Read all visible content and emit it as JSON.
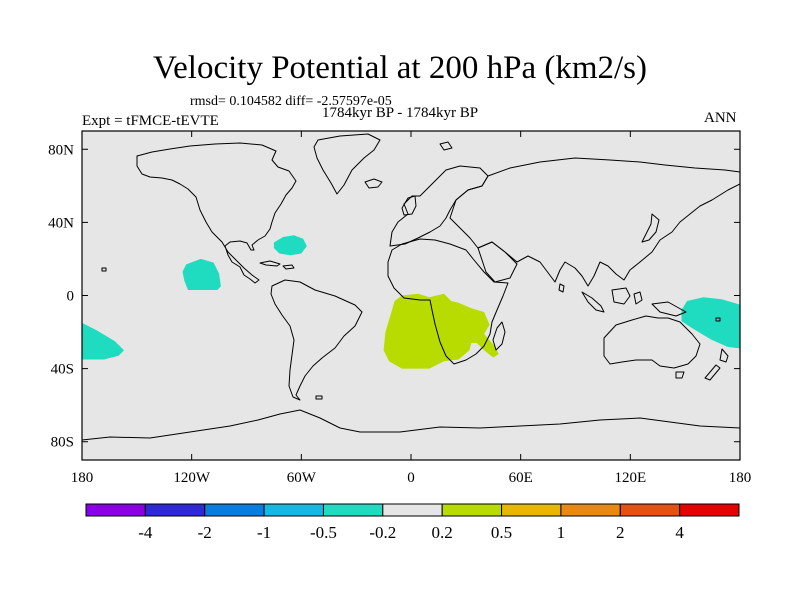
{
  "title": "Velocity Potential at 200 hPa (km2/s)",
  "stats": "rmsd= 0.104582 diff= -2.57597e-05",
  "period": "1784kyr BP - 1784kyr BP",
  "experiment": "Expt = tFMCE-tEVTE",
  "season": "ANN",
  "map": {
    "projection": "cylindrical-equidistant",
    "lon_range": [
      -180,
      180
    ],
    "lat_range": [
      -90,
      90
    ],
    "lon_ticks": [
      {
        "value": -180,
        "label": "180"
      },
      {
        "value": -120,
        "label": "120W"
      },
      {
        "value": -60,
        "label": "60W"
      },
      {
        "value": 0,
        "label": "0"
      },
      {
        "value": 60,
        "label": "60E"
      },
      {
        "value": 120,
        "label": "120E"
      },
      {
        "value": 180,
        "label": "180"
      }
    ],
    "lat_ticks": [
      {
        "value": 80,
        "label": "80N"
      },
      {
        "value": 40,
        "label": "40N"
      },
      {
        "value": 0,
        "label": "0"
      },
      {
        "value": -40,
        "label": "40S"
      },
      {
        "value": -80,
        "label": "80S"
      }
    ],
    "background_color": "#e6e6e6",
    "coastline_color": "#000000",
    "shaded_regions": [
      {
        "name": "central-pacific-negative",
        "bin": "-0.5 to -0.2",
        "color": "#1fdcc0",
        "outline": [
          [
            -123,
            17
          ],
          [
            -115,
            20
          ],
          [
            -108,
            18
          ],
          [
            -105,
            12
          ],
          [
            -104,
            5
          ],
          [
            -106,
            3
          ],
          [
            -112,
            3
          ],
          [
            -122,
            3
          ],
          [
            -124,
            8
          ],
          [
            -125,
            13
          ]
        ]
      },
      {
        "name": "west-atlantic-negative",
        "bin": "-0.5 to -0.2",
        "color": "#1fdcc0",
        "outline": [
          [
            -75,
            29
          ],
          [
            -70,
            32
          ],
          [
            -64,
            33
          ],
          [
            -59,
            31
          ],
          [
            -57,
            27
          ],
          [
            -60,
            23
          ],
          [
            -66,
            22
          ],
          [
            -72,
            23
          ],
          [
            -75,
            26
          ]
        ]
      },
      {
        "name": "south-pacific-negative",
        "bin": "-0.5 to -0.2",
        "color": "#1fdcc0",
        "outline": [
          [
            -180,
            -15
          ],
          [
            -172,
            -19
          ],
          [
            -162,
            -25
          ],
          [
            -157,
            -30
          ],
          [
            -160,
            -33
          ],
          [
            -168,
            -35
          ],
          [
            -180,
            -35
          ]
        ]
      },
      {
        "name": "southwest-pacific-negative",
        "bin": "-0.5 to -0.2",
        "color": "#1fdcc0",
        "outline": [
          [
            180,
            -5
          ],
          [
            170,
            -2
          ],
          [
            160,
            -1
          ],
          [
            151,
            -3
          ],
          [
            148,
            -8
          ],
          [
            148,
            -14
          ],
          [
            154,
            -18
          ],
          [
            164,
            -24
          ],
          [
            173,
            -28
          ],
          [
            180,
            -29
          ]
        ]
      },
      {
        "name": "south-atlantic-positive",
        "bin": "0.2 to 0.5",
        "color": "#b8dc00",
        "outline": [
          [
            -5,
            0
          ],
          [
            4,
            1
          ],
          [
            10,
            -1
          ],
          [
            18,
            1
          ],
          [
            22,
            -3
          ],
          [
            26,
            -4
          ],
          [
            33,
            -7
          ],
          [
            40,
            -9
          ],
          [
            43,
            -16
          ],
          [
            40,
            -21
          ],
          [
            46,
            -28
          ],
          [
            48,
            -32
          ],
          [
            45,
            -34
          ],
          [
            40,
            -30
          ],
          [
            36,
            -26
          ],
          [
            33,
            -26
          ],
          [
            32,
            -30
          ],
          [
            26,
            -35
          ],
          [
            18,
            -36
          ],
          [
            10,
            -40
          ],
          [
            -5,
            -40
          ],
          [
            -12,
            -36
          ],
          [
            -15,
            -30
          ],
          [
            -14,
            -20
          ],
          [
            -11,
            -10
          ],
          [
            -9,
            -3
          ]
        ]
      }
    ]
  },
  "legend": {
    "colors": [
      "#8a00e6",
      "#2f28d8",
      "#0a7cdc",
      "#14b8e0",
      "#1fdcc0",
      "#e6e6e6",
      "#b8dc00",
      "#e6b800",
      "#e68a14",
      "#e65014",
      "#e60000"
    ],
    "labels": [
      "-4",
      "-2",
      "-1",
      "-0.5",
      "-0.2",
      "0.2",
      "0.5",
      "1",
      "2",
      "4"
    ]
  }
}
